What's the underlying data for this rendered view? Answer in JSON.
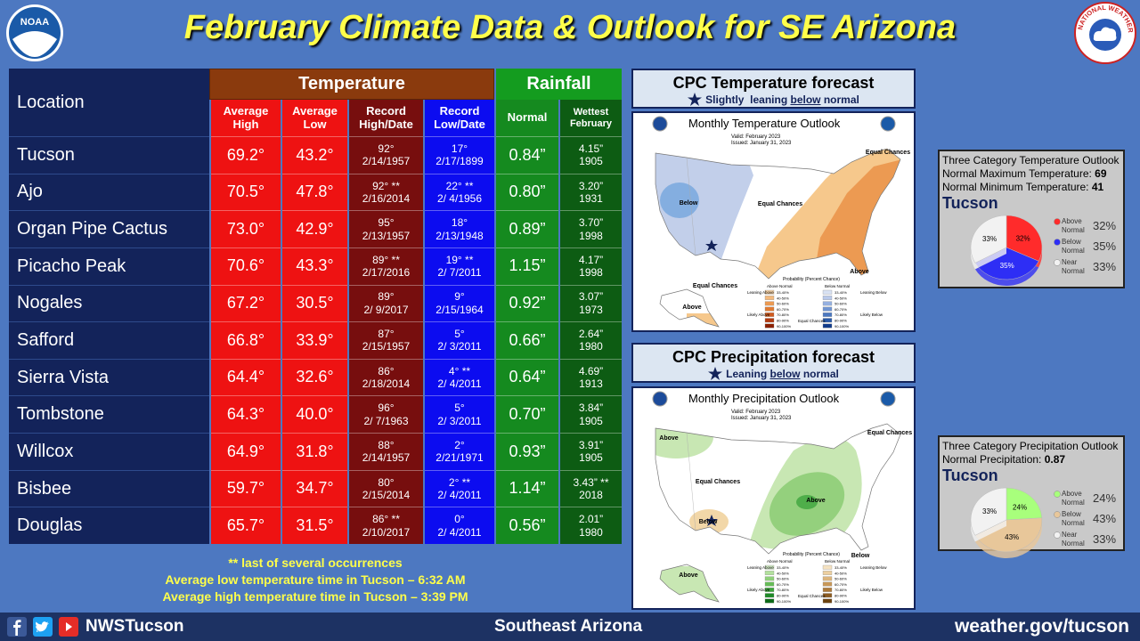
{
  "header": {
    "title": "February Climate Data & Outlook for SE Arizona",
    "noaa_logo": "NOAA",
    "nws_logo": "NATIONAL WEATHER SERVICE"
  },
  "table": {
    "location_header": "Location",
    "temperature_header": "Temperature",
    "rainfall_header": "Rainfall",
    "columns": [
      "Average High",
      "Average Low",
      "Record High/Date",
      "Record Low/Date",
      "Normal",
      "Wettest February"
    ],
    "rows": [
      [
        "Tucson",
        "69.2°",
        "43.2°",
        "92°",
        "2/14/1957",
        "17°",
        "2/17/1899",
        "0.84”",
        "4.15”",
        "1905"
      ],
      [
        "Ajo",
        "70.5°",
        "47.8°",
        "92° **",
        "2/16/2014",
        "22° **",
        "2/ 4/1956",
        "0.80”",
        "3.20”",
        "1931"
      ],
      [
        "Organ Pipe Cactus",
        "73.0°",
        "42.9°",
        "95°",
        "2/13/1957",
        "18°",
        "2/13/1948",
        "0.89”",
        "3.70”",
        "1998"
      ],
      [
        "Picacho Peak",
        "70.6°",
        "43.3°",
        "89° **",
        "2/17/2016",
        "19° **",
        "2/ 7/2011",
        "1.15”",
        "4.17”",
        "1998"
      ],
      [
        "Nogales",
        "67.2°",
        "30.5°",
        "89°",
        "2/ 9/2017",
        "9°",
        "2/15/1964",
        "0.92”",
        "3.07”",
        "1973"
      ],
      [
        "Safford",
        "66.8°",
        "33.9°",
        "87°",
        "2/15/1957",
        "5°",
        "2/ 3/2011",
        "0.66”",
        "2.64”",
        "1980"
      ],
      [
        "Sierra Vista",
        "64.4°",
        "32.6°",
        "86°",
        "2/18/2014",
        "4° **",
        "2/ 4/2011",
        "0.64”",
        "4.69”",
        "1913"
      ],
      [
        "Tombstone",
        "64.3°",
        "40.0°",
        "96°",
        "2/ 7/1963",
        "5°",
        "2/ 3/2011",
        "0.70”",
        "3.84”",
        "1905"
      ],
      [
        "Willcox",
        "64.9°",
        "31.8°",
        "88°",
        "2/14/1957",
        "2°",
        "2/21/1971",
        "0.93”",
        "3.91”",
        "1905"
      ],
      [
        "Bisbee",
        "59.7°",
        "34.7°",
        "80°",
        "2/15/2014",
        "2° **",
        "2/ 4/2011",
        "1.14”",
        "3.43” **",
        "2018"
      ],
      [
        "Douglas",
        "65.7°",
        "31.5°",
        "86° **",
        "2/10/2017",
        "0°",
        "2/ 4/2011",
        "0.56”",
        "2.01”",
        "1980"
      ]
    ]
  },
  "notes": [
    "** last of several occurrences",
    "Average low temperature time in Tucson – 6:32 AM",
    "Average high temperature time in Tucson – 3:39 PM"
  ],
  "footer": {
    "social": "NWSTucson",
    "region": "Southeast Arizona",
    "url": "weather.gov/tucson"
  },
  "map_legend": {
    "title": "Probability (Percent Chance)",
    "above": "Above Normal",
    "below": "Below Normal",
    "ranges": [
      "33-40%",
      "40-50%",
      "50-60%",
      "60-70%",
      "70-80%",
      "80-90%",
      "90-100%"
    ],
    "notes": [
      "Leaning Above",
      "Likely Above",
      "Equal Chances",
      "Leaning Below",
      "Likely Below"
    ]
  },
  "temperature_panel": {
    "title": "CPC Temperature forecast",
    "subtitle": [
      "Slightly  leaning ",
      "below",
      " normal"
    ],
    "map": {
      "title": "Monthly Temperature Outlook",
      "valid": "Valid:  February 2023",
      "issued": "Issued:  January 31, 2023",
      "labels": [
        "Below",
        "Equal Chances",
        "Equal Chances",
        "Above",
        "Equal Chances",
        "Above"
      ]
    },
    "card": {
      "title": "Three Category Temperature Outlook",
      "lines": [
        [
          "Normal Maximum Temperature: ",
          "69"
        ],
        [
          "Normal Minimum Temperature: ",
          "41"
        ]
      ],
      "location": "Tucson",
      "slices": [
        {
          "name": "Above Normal",
          "value": 32,
          "label": "32%",
          "color": "#ff2b2b"
        },
        {
          "name": "Below Normal",
          "value": 35,
          "label": "35%",
          "color": "#2e2ef5"
        },
        {
          "name": "Near Normal",
          "value": 33,
          "label": "33%",
          "color": "#f2f2f2"
        }
      ]
    }
  },
  "precipitation_panel": {
    "title": "CPC Precipitation forecast",
    "subtitle": [
      "Leaning ",
      "below",
      " normal"
    ],
    "map": {
      "title": "Monthly Precipitation Outlook",
      "valid": "Valid:  February 2023",
      "issued": "Issued:  January 31, 2023",
      "labels": [
        "Above",
        "Equal Chances",
        "Equal Chances",
        "Above",
        "Below",
        "Below",
        "Above"
      ]
    },
    "card": {
      "title": "Three Category Precipitation Outlook",
      "lines": [
        [
          "Normal Precipitation: ",
          "0.87"
        ]
      ],
      "location": "Tucson",
      "slices": [
        {
          "name": "Above Normal",
          "value": 24,
          "label": "24%",
          "color": "#a8ff7c"
        },
        {
          "name": "Below Normal",
          "value": 43,
          "label": "43%",
          "color": "#e8c79a"
        },
        {
          "name": "Near Normal",
          "value": 33,
          "label": "33%",
          "color": "#f2f2f2"
        }
      ]
    }
  }
}
